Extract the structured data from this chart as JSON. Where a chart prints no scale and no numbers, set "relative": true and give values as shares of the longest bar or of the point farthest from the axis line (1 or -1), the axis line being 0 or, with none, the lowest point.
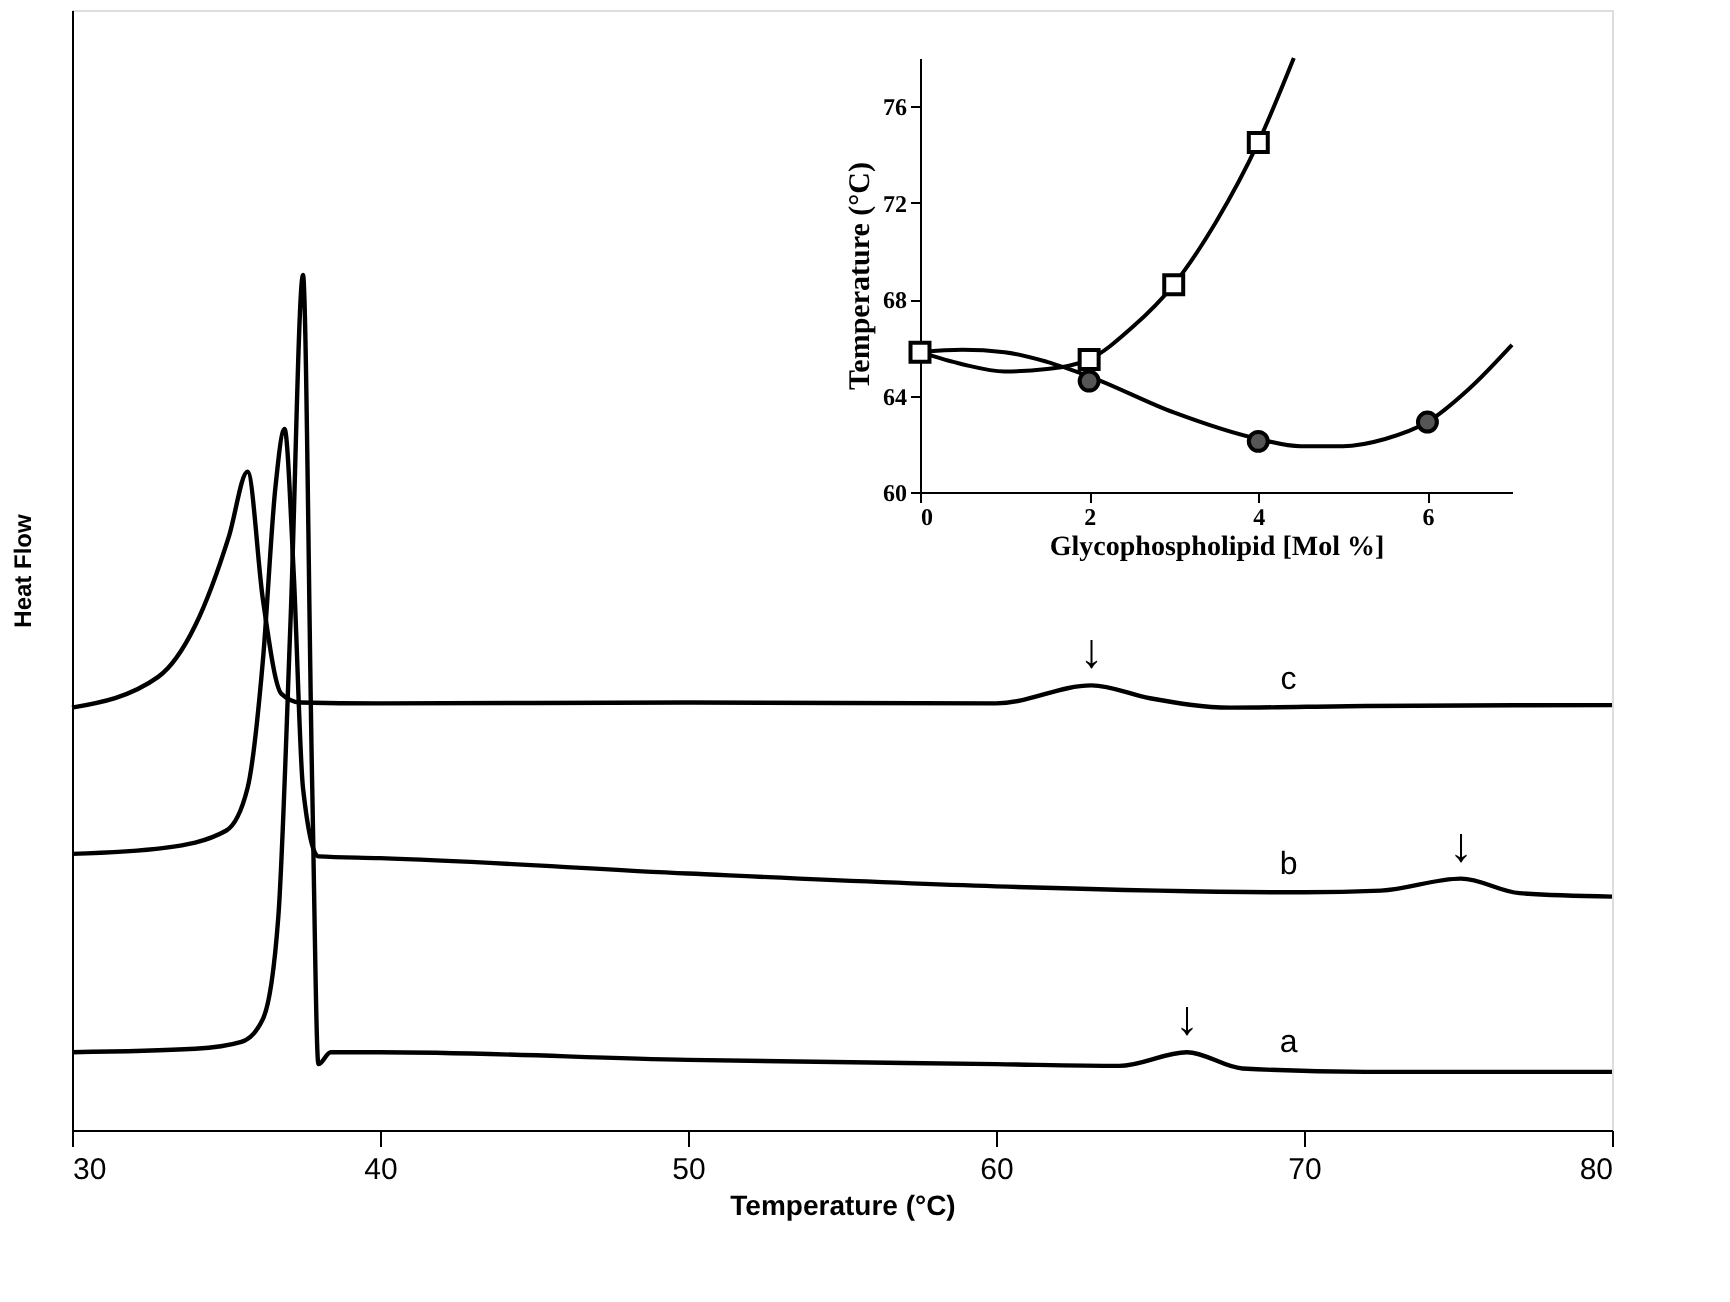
{
  "chart_data": [
    {
      "type": "line",
      "relative": true,
      "xlabel": "Temperature (°C)",
      "ylabel": "Heat Flow",
      "xlim": [
        30,
        80
      ],
      "xticks": [
        30,
        40,
        50,
        60,
        70,
        80
      ],
      "grid": false,
      "line_style": "solid",
      "marker": "none",
      "series": [
        {
          "name": "a",
          "color": "#000000",
          "x": [
            30,
            34,
            35.5,
            36.2,
            36.7,
            37.1,
            37.5,
            37.8,
            38.0,
            38.4,
            40,
            50,
            60,
            64,
            66.2,
            68,
            72,
            80
          ],
          "values": [
            0.091,
            0.095,
            0.103,
            0.13,
            0.25,
            0.6,
            1.0,
            0.4,
            0.077,
            0.091,
            0.091,
            0.082,
            0.077,
            0.075,
            0.091,
            0.072,
            0.068,
            0.068
          ]
        },
        {
          "name": "b",
          "color": "#000000",
          "x": [
            30,
            33,
            35,
            35.7,
            36.2,
            36.6,
            36.9,
            37.2,
            37.5,
            38.0,
            40,
            50,
            60,
            70,
            72.5,
            75.1,
            77,
            80
          ],
          "values": [
            0.323,
            0.33,
            0.35,
            0.4,
            0.55,
            0.75,
            0.82,
            0.65,
            0.4,
            0.32,
            0.318,
            0.3,
            0.285,
            0.278,
            0.28,
            0.294,
            0.277,
            0.273
          ]
        },
        {
          "name": "c",
          "color": "#000000",
          "x": [
            30,
            32.8,
            34.0,
            35.1,
            35.7,
            36.2,
            36.8,
            37.4,
            40,
            50,
            60,
            63.1,
            65,
            67.6,
            72,
            80
          ],
          "values": [
            0.494,
            0.53,
            0.59,
            0.695,
            0.77,
            0.62,
            0.51,
            0.5,
            0.499,
            0.5,
            0.499,
            0.52,
            0.505,
            0.494,
            0.496,
            0.497
          ]
        }
      ],
      "annotations": [
        {
          "text": "↓",
          "x": 63.1,
          "y": 0.52
        },
        {
          "text": "↓",
          "x": 75.1,
          "y": 0.294
        },
        {
          "text": "↓",
          "x": 66.2,
          "y": 0.091
        }
      ]
    },
    {
      "type": "scatter",
      "xlabel": "Glycophospholipid [Mol %]",
      "ylabel": "Temperature (°C)",
      "xlim": [
        0,
        7
      ],
      "xticks": [
        0,
        2,
        4,
        6
      ],
      "ylim": [
        60,
        78
      ],
      "yticks": [
        60,
        64,
        68,
        72,
        76
      ],
      "grid": false,
      "series": [
        {
          "type": "scatter",
          "marker": "square",
          "color": "#000000",
          "x": [
            0,
            2,
            3,
            4
          ],
          "values": [
            65.8,
            65.5,
            68.6,
            74.5
          ]
        },
        {
          "type": "scatter",
          "marker": "circle",
          "color": "#555555",
          "x": [
            2,
            4,
            6
          ],
          "values": [
            64.6,
            62.1,
            62.9
          ]
        },
        {
          "type": "line",
          "marker": "none",
          "color": "#000000",
          "x": [
            0,
            0.5,
            1,
            1.5,
            2,
            2.5,
            3,
            3.5,
            4,
            4.42
          ],
          "values": [
            65.8,
            65.3,
            65.0,
            65.1,
            65.5,
            66.8,
            68.6,
            71.2,
            74.5,
            78.0
          ]
        },
        {
          "type": "line",
          "marker": "none",
          "color": "#000000",
          "x": [
            0,
            0.5,
            1,
            1.5,
            2,
            3,
            4,
            4.5,
            5,
            5.5,
            6,
            6.5,
            7
          ],
          "values": [
            65.8,
            65.9,
            65.8,
            65.4,
            64.8,
            63.3,
            62.2,
            61.9,
            61.9,
            62.2,
            62.9,
            64.3,
            66.1
          ]
        }
      ]
    }
  ]
}
